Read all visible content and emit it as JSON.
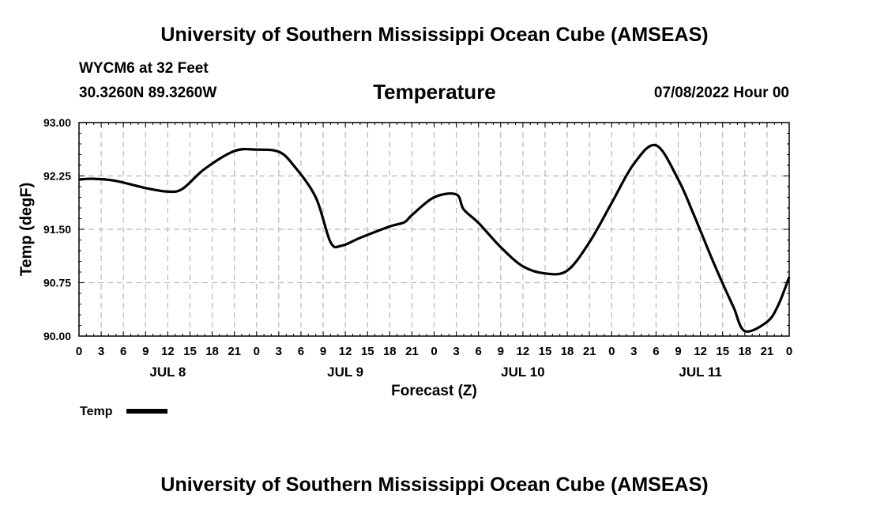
{
  "header": {
    "title": "University of Southern Mississippi Ocean Cube (AMSEAS)",
    "station": "WYCM6 at 32 Feet",
    "coords": "30.3260N  89.3260W",
    "chart_title": "Temperature",
    "datetime": "07/08/2022 Hour 00"
  },
  "footer": {
    "title": "University of Southern Mississippi Ocean Cube (AMSEAS)"
  },
  "chart_data": {
    "type": "line",
    "title": "Temperature",
    "xlabel": "Forecast (Z)",
    "ylabel": "Temp (degF)",
    "ylim": [
      90.0,
      93.0
    ],
    "xlim": [
      0,
      96
    ],
    "yticks": [
      90.0,
      90.75,
      91.5,
      92.25,
      93.0
    ],
    "ytick_labels": [
      "90.00",
      "90.75",
      "91.50",
      "92.25",
      "93.00"
    ],
    "xtick_hours": [
      0,
      3,
      6,
      9,
      12,
      15,
      18,
      21,
      24,
      27,
      30,
      33,
      36,
      39,
      42,
      45,
      48,
      51,
      54,
      57,
      60,
      63,
      66,
      69,
      72,
      75,
      78,
      81,
      84,
      87,
      90,
      93,
      96
    ],
    "xtick_labels": [
      "0",
      "3",
      "6",
      "9",
      "12",
      "15",
      "18",
      "21",
      "0",
      "3",
      "6",
      "9",
      "12",
      "15",
      "18",
      "21",
      "0",
      "3",
      "6",
      "9",
      "12",
      "15",
      "18",
      "21",
      "0",
      "3",
      "6",
      "9",
      "12",
      "15",
      "18",
      "21",
      "0"
    ],
    "date_labels": [
      {
        "label": "JUL 8",
        "hour": 12
      },
      {
        "label": "JUL 9",
        "hour": 36
      },
      {
        "label": "JUL 10",
        "hour": 60
      },
      {
        "label": "JUL 11",
        "hour": 84
      }
    ],
    "grid": true,
    "legend_position": "bottom-left",
    "series": [
      {
        "name": "Temp",
        "color": "#000000",
        "x": [
          0,
          2,
          5,
          9,
          12,
          14,
          17,
          21,
          24,
          27,
          29,
          32,
          34,
          35.5,
          38,
          42,
          44,
          45,
          48,
          51,
          52,
          54,
          57,
          60,
          63,
          66,
          69,
          72,
          75,
          78,
          81,
          83,
          84,
          85.5,
          87,
          88.5,
          90,
          93,
          94.5,
          96
        ],
        "y": [
          92.2,
          92.21,
          92.18,
          92.08,
          92.03,
          92.07,
          92.35,
          92.6,
          92.62,
          92.59,
          92.4,
          91.95,
          91.32,
          91.27,
          91.38,
          91.54,
          91.6,
          91.7,
          91.95,
          91.99,
          91.78,
          91.59,
          91.25,
          90.98,
          90.88,
          90.92,
          91.32,
          91.87,
          92.42,
          92.68,
          92.2,
          91.73,
          91.48,
          91.1,
          90.74,
          90.4,
          90.07,
          90.2,
          90.43,
          90.83
        ]
      }
    ]
  }
}
